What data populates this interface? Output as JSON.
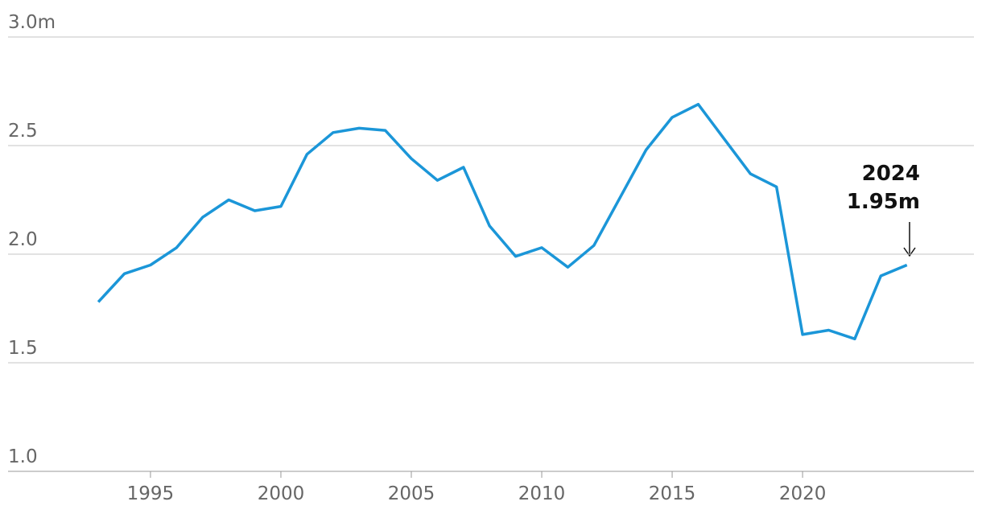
{
  "chart_data": {
    "type": "line",
    "x": [
      1993,
      1994,
      1995,
      1996,
      1997,
      1998,
      1999,
      2000,
      2001,
      2002,
      2003,
      2004,
      2005,
      2006,
      2007,
      2008,
      2009,
      2010,
      2011,
      2012,
      2013,
      2014,
      2015,
      2016,
      2017,
      2018,
      2019,
      2020,
      2021,
      2022,
      2023,
      2024
    ],
    "series": [
      {
        "color": "#1b96d8",
        "values": [
          1.78,
          1.91,
          1.95,
          2.03,
          2.17,
          2.25,
          2.2,
          2.22,
          2.46,
          2.56,
          2.58,
          2.57,
          2.44,
          2.34,
          2.4,
          2.13,
          1.99,
          2.03,
          1.94,
          2.04,
          2.26,
          2.48,
          2.63,
          2.69,
          2.53,
          2.37,
          2.31,
          1.63,
          1.65,
          1.61,
          1.9,
          1.95
        ]
      }
    ],
    "xlim": [
      1989.54,
      2026.57
    ],
    "xticks": [
      1995,
      2000,
      2005,
      2010,
      2015,
      2020
    ],
    "ylim": [
      1.0,
      3.0
    ],
    "yticks": [
      {
        "value": 1,
        "label": "1.0"
      },
      1.5,
      {
        "value": 2,
        "label": "2.0"
      },
      2.5,
      {
        "value": 3,
        "label": "3.0m"
      }
    ],
    "grid": true,
    "annotations": [
      {
        "x": 2024,
        "label": "1.95m"
      }
    ]
  }
}
